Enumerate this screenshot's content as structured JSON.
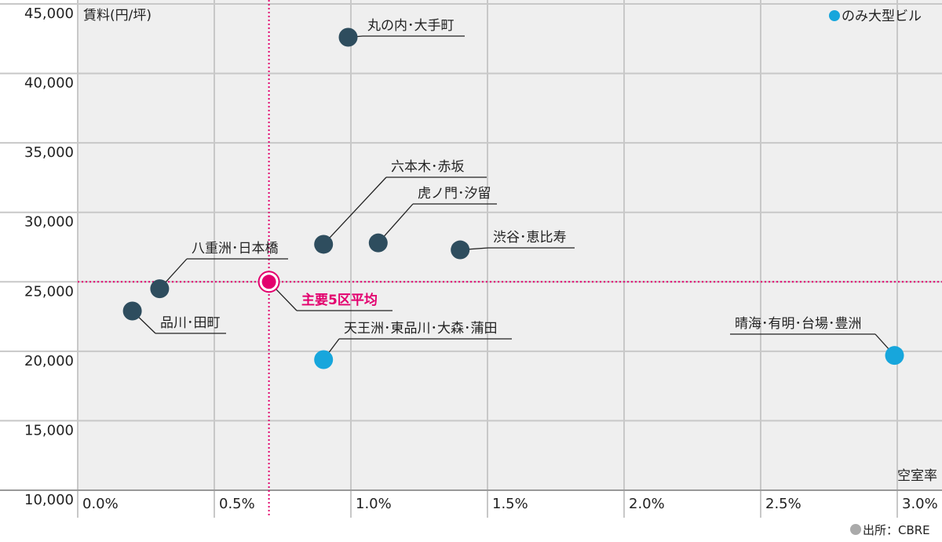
{
  "chart_data": {
    "type": "scatter",
    "y_label": "賃料(円/坪)",
    "x_label": "空室率",
    "source": "出所：CBRE",
    "legend": {
      "label": "のみ大型ビル",
      "color": "#17a6dc"
    },
    "xlim": [
      0,
      3.15
    ],
    "ylim": [
      10000,
      45000
    ],
    "xticks": [
      {
        "value": 0,
        "label": "0.0%"
      },
      {
        "value": 0.5,
        "label": "0.5%"
      },
      {
        "value": 1,
        "label": "1.0%"
      },
      {
        "value": 1.5,
        "label": "1.5%"
      },
      {
        "value": 2,
        "label": "2.0%"
      },
      {
        "value": 2.5,
        "label": "2.5%"
      },
      {
        "value": 3,
        "label": "3.0%"
      }
    ],
    "yticks": [
      {
        "value": 10000,
        "label": "10,000"
      },
      {
        "value": 15000,
        "label": "15,000"
      },
      {
        "value": 20000,
        "label": "20,000"
      },
      {
        "value": 25000,
        "label": "25,000"
      },
      {
        "value": 30000,
        "label": "30,000"
      },
      {
        "value": 35000,
        "label": "35,000"
      },
      {
        "value": 40000,
        "label": "40,000"
      },
      {
        "value": 45000,
        "label": "45,000"
      }
    ],
    "grid": true,
    "points": [
      {
        "label": "丸の内･大手町",
        "x": 0.99,
        "y": 42600,
        "color": "#2e4d5e"
      },
      {
        "label": "六本木･赤坂",
        "x": 0.9,
        "y": 27700,
        "color": "#2e4d5e"
      },
      {
        "label": "虎ノ門･汐留",
        "x": 1.1,
        "y": 27800,
        "color": "#2e4d5e"
      },
      {
        "label": "渋谷･恵比寿",
        "x": 1.4,
        "y": 27300,
        "color": "#2e4d5e"
      },
      {
        "label": "八重洲･日本橋",
        "x": 0.3,
        "y": 24500,
        "color": "#2e4d5e"
      },
      {
        "label": "品川･田町",
        "x": 0.2,
        "y": 22900,
        "color": "#2e4d5e"
      },
      {
        "label": "主要5区平均",
        "x": 0.7,
        "y": 25000,
        "color": "#e3006e"
      },
      {
        "label": "天王洲･東品川･大森･蒲田",
        "x": 0.9,
        "y": 19400,
        "color": "#17a6dc"
      },
      {
        "label": "晴海･有明･台場･豊洲",
        "x": 2.99,
        "y": 19700,
        "color": "#17a6dc"
      }
    ]
  }
}
